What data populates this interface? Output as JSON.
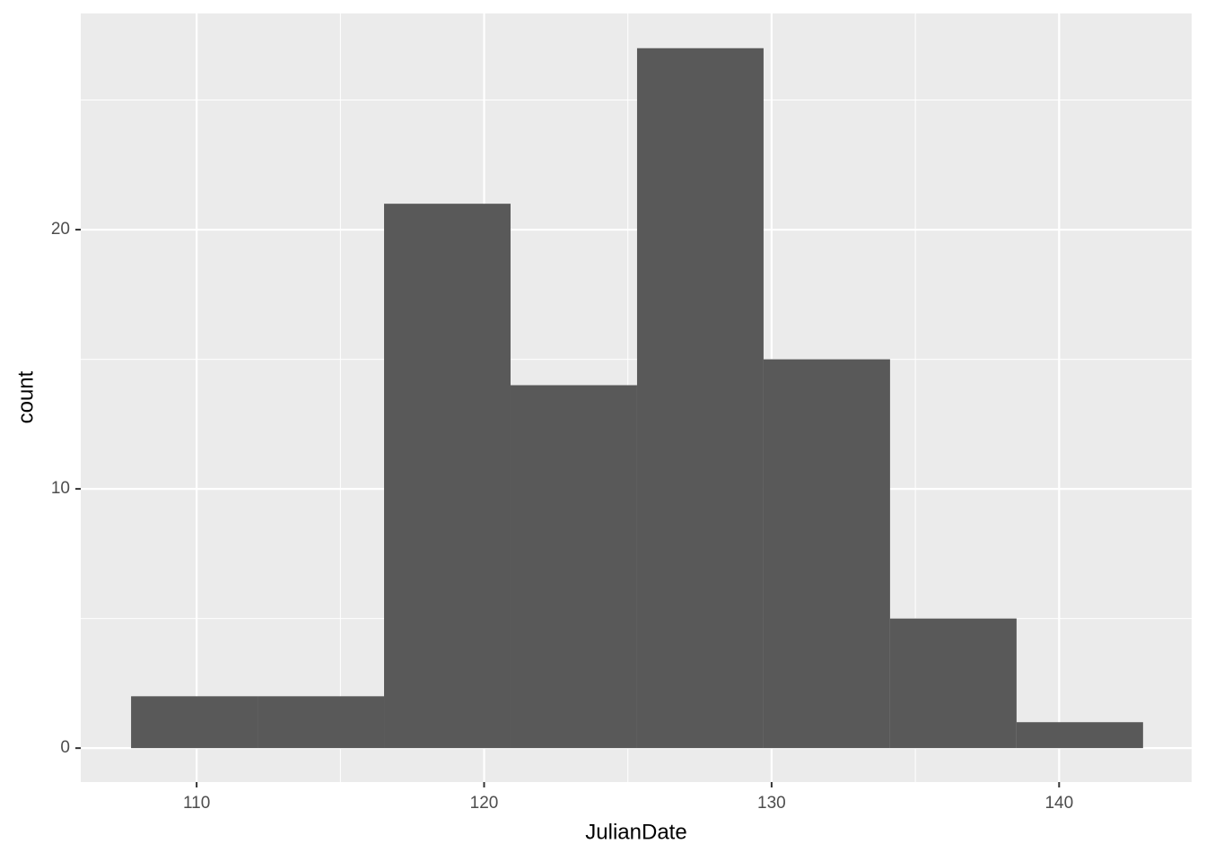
{
  "chart_data": {
    "type": "histogram",
    "xlabel": "JulianDate",
    "ylabel": "count",
    "bins": [
      107.72,
      112.12,
      116.52,
      120.92,
      125.32,
      129.72,
      134.12,
      138.52,
      142.92
    ],
    "values": [
      2,
      2,
      21,
      14,
      27,
      15,
      5,
      1
    ],
    "color": "#595959",
    "xlim": [
      105.97,
      144.61
    ],
    "ylim": [
      -1.31,
      28.34
    ],
    "xticks": [
      110,
      120,
      130,
      140
    ],
    "yticks": [
      0,
      10,
      20
    ],
    "xminor": [
      115,
      125,
      135
    ],
    "yminor": [
      5,
      15,
      25
    ],
    "grid": true
  }
}
